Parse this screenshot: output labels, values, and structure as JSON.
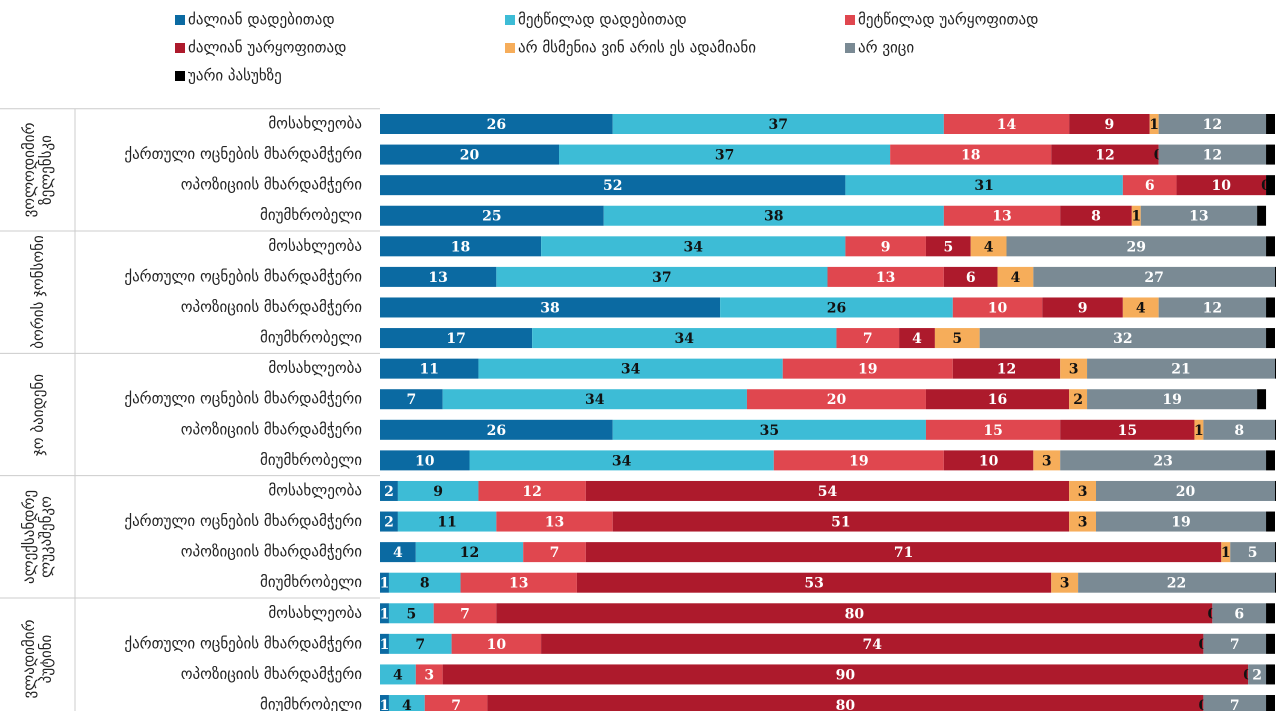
{
  "chart_data": {
    "type": "stacked-bar",
    "orientation": "horizontal",
    "xlim": [
      0,
      100
    ],
    "groups": [
      "ვოლოდიმირ ზელენსკი",
      "ბორის ჯონსონი",
      "ჯო ბაიდენი",
      "ალექსანდრე ლუკაშენკო",
      "ვლადიმირ პუტინი"
    ],
    "categories": [
      "მოსახლეობა",
      "ქართული ოცნების მხარდამჭერი",
      "ოპოზიციის მხარდამჭერი",
      "მიუმხრობელი",
      "მოსახლეობა",
      "ქართული ოცნების მხარდამჭერი",
      "ოპოზიციის მხარდამჭერი",
      "მიუმხრობელი",
      "მოსახლეობა",
      "ქართული ოცნების მხარდამჭერი",
      "ოპოზიციის მხარდამჭერი",
      "მიუმხრობელი",
      "მოსახლეობა",
      "ქართული ოცნების მხარდამჭერი",
      "ოპოზიციის მხარდამჭერი",
      "მიუმხრობელი",
      "მოსახლეობა",
      "ქართული ოცნების მხარდამჭერი",
      "ოპოზიციის მხარდამჭერი",
      "მიუმხრობელი"
    ],
    "series": [
      {
        "name": "ძალიან დადებითად",
        "color": "#0b6aa2",
        "values": [
          26,
          20,
          52,
          25,
          18,
          13,
          38,
          17,
          11,
          7,
          26,
          10,
          2,
          2,
          4,
          1,
          1,
          1,
          0,
          1
        ]
      },
      {
        "name": "მეტწილად დადებითად",
        "color": "#3dbcd6",
        "values": [
          37,
          37,
          31,
          38,
          34,
          37,
          26,
          34,
          34,
          34,
          35,
          34,
          9,
          11,
          12,
          8,
          5,
          7,
          4,
          4
        ]
      },
      {
        "name": "მეტწილად უარყოფითად",
        "color": "#e0474f",
        "values": [
          14,
          18,
          6,
          13,
          9,
          13,
          10,
          7,
          19,
          20,
          15,
          19,
          12,
          13,
          7,
          13,
          7,
          10,
          3,
          7
        ]
      },
      {
        "name": "ძალიან უარყოფითად",
        "color": "#ad1a2c",
        "values": [
          9,
          12,
          10,
          8,
          5,
          6,
          9,
          4,
          12,
          16,
          15,
          10,
          54,
          51,
          71,
          53,
          80,
          74,
          90,
          80
        ]
      },
      {
        "name": "არ მსმენია ვინ არის ეს ადამიანი",
        "color": "#f6ad5a",
        "values": [
          1,
          0,
          0,
          1,
          4,
          4,
          4,
          5,
          3,
          2,
          1,
          3,
          3,
          3,
          1,
          3,
          0,
          0,
          0,
          0
        ]
      },
      {
        "name": "არ ვიცი",
        "color": "#7a8a94",
        "values": [
          12,
          12,
          null,
          13,
          29,
          27,
          12,
          32,
          21,
          19,
          8,
          23,
          20,
          19,
          5,
          22,
          6,
          7,
          2,
          7
        ]
      },
      {
        "name": "უარი პასუხზე",
        "color": "#000000",
        "labels": false,
        "values": [
          1,
          1,
          1,
          1,
          1,
          1,
          1,
          1,
          1,
          1,
          1,
          1,
          1,
          1,
          1,
          1,
          1,
          1,
          1,
          1
        ]
      }
    ]
  }
}
